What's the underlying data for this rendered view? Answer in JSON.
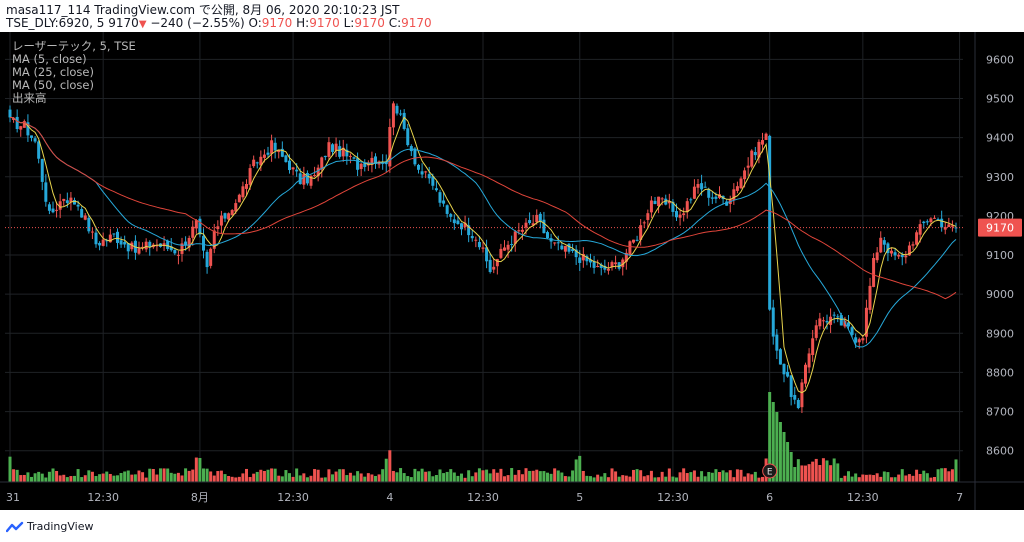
{
  "header": {
    "line1": "masa117_114 TradingView.com で公開, 8月 06, 2020 20:10:23 JST",
    "symbol": "TSE_DLY:6920, 5",
    "last": "9170",
    "change": "−240 (−2.55%)",
    "o_label": "O:",
    "o": "9170",
    "h_label": "H:",
    "h": "9170",
    "l_label": "L:",
    "l": "9170",
    "c_label": "C:",
    "c": "9170"
  },
  "legend": {
    "title": "レーザーテック, 5, TSE",
    "ma5": "MA (5, close)",
    "ma25": "MA (25, close)",
    "ma50": "MA (50, close)",
    "volume": "出来高"
  },
  "footer": {
    "brand": "TradingView"
  },
  "colors": {
    "background": "#000000",
    "grid": "#1f2226",
    "up": "#ef5350",
    "down": "#26a8d9",
    "ma5": "#e8d44d",
    "ma25": "#26a8d9",
    "ma50": "#e0453a",
    "vol_up": "#ef5350",
    "vol_down": "#4caf50",
    "price_label": "#ef5350",
    "axis_text": "#b2b5be"
  },
  "chart_data": {
    "type": "candlestick",
    "interval": "5 min",
    "ylim": [
      8520,
      9670
    ],
    "y_ticks": [
      9600,
      9500,
      9400,
      9300,
      9200,
      9100,
      9000,
      8900,
      8800,
      8700,
      8600
    ],
    "x_tick_labels": [
      {
        "label": "31",
        "index": 0
      },
      {
        "label": "12:30",
        "index": 26
      },
      {
        "label": "8月",
        "index": 53
      },
      {
        "label": "12:30",
        "index": 79
      },
      {
        "label": "4",
        "index": 106
      },
      {
        "label": "12:30",
        "index": 132
      },
      {
        "label": "5",
        "index": 159
      },
      {
        "label": "12:30",
        "index": 185
      },
      {
        "label": "6",
        "index": 212
      },
      {
        "label": "12:30",
        "index": 238
      },
      {
        "label": "7",
        "index": 265
      }
    ],
    "bar_count": 265,
    "current_price": 9170,
    "price_line": 9170,
    "event_marker": {
      "label": "E",
      "index": 212
    },
    "anchors": [
      {
        "i": 0,
        "p": 9440
      },
      {
        "i": 4,
        "p": 9430
      },
      {
        "i": 7,
        "p": 9390
      },
      {
        "i": 11,
        "p": 9200
      },
      {
        "i": 15,
        "p": 9250
      },
      {
        "i": 19,
        "p": 9230
      },
      {
        "i": 24,
        "p": 9130
      },
      {
        "i": 29,
        "p": 9150
      },
      {
        "i": 35,
        "p": 9110
      },
      {
        "i": 40,
        "p": 9130
      },
      {
        "i": 47,
        "p": 9110
      },
      {
        "i": 52,
        "p": 9180
      },
      {
        "i": 55,
        "p": 9060
      },
      {
        "i": 57,
        "p": 9160
      },
      {
        "i": 60,
        "p": 9200
      },
      {
        "i": 64,
        "p": 9250
      },
      {
        "i": 68,
        "p": 9330
      },
      {
        "i": 73,
        "p": 9380
      },
      {
        "i": 78,
        "p": 9330
      },
      {
        "i": 81,
        "p": 9290
      },
      {
        "i": 85,
        "p": 9300
      },
      {
        "i": 89,
        "p": 9380
      },
      {
        "i": 93,
        "p": 9360
      },
      {
        "i": 97,
        "p": 9330
      },
      {
        "i": 101,
        "p": 9350
      },
      {
        "i": 105,
        "p": 9340
      },
      {
        "i": 107,
        "p": 9500
      },
      {
        "i": 110,
        "p": 9420
      },
      {
        "i": 114,
        "p": 9320
      },
      {
        "i": 118,
        "p": 9280
      },
      {
        "i": 122,
        "p": 9200
      },
      {
        "i": 126,
        "p": 9180
      },
      {
        "i": 130,
        "p": 9150
      },
      {
        "i": 134,
        "p": 9060
      },
      {
        "i": 138,
        "p": 9120
      },
      {
        "i": 142,
        "p": 9160
      },
      {
        "i": 147,
        "p": 9190
      },
      {
        "i": 151,
        "p": 9130
      },
      {
        "i": 155,
        "p": 9110
      },
      {
        "i": 160,
        "p": 9090
      },
      {
        "i": 165,
        "p": 9060
      },
      {
        "i": 170,
        "p": 9080
      },
      {
        "i": 175,
        "p": 9150
      },
      {
        "i": 179,
        "p": 9240
      },
      {
        "i": 183,
        "p": 9230
      },
      {
        "i": 187,
        "p": 9200
      },
      {
        "i": 192,
        "p": 9280
      },
      {
        "i": 196,
        "p": 9250
      },
      {
        "i": 200,
        "p": 9240
      },
      {
        "i": 204,
        "p": 9300
      },
      {
        "i": 208,
        "p": 9370
      },
      {
        "i": 211,
        "p": 9410
      },
      {
        "i": 212,
        "p": 8950
      },
      {
        "i": 214,
        "p": 8860
      },
      {
        "i": 216,
        "p": 8800
      },
      {
        "i": 218,
        "p": 8750
      },
      {
        "i": 220,
        "p": 8700
      },
      {
        "i": 222,
        "p": 8820
      },
      {
        "i": 225,
        "p": 8930
      },
      {
        "i": 229,
        "p": 8940
      },
      {
        "i": 233,
        "p": 8920
      },
      {
        "i": 236,
        "p": 8890
      },
      {
        "i": 238,
        "p": 8900
      },
      {
        "i": 241,
        "p": 9080
      },
      {
        "i": 243,
        "p": 9150
      },
      {
        "i": 246,
        "p": 9100
      },
      {
        "i": 249,
        "p": 9090
      },
      {
        "i": 252,
        "p": 9140
      },
      {
        "i": 255,
        "p": 9180
      },
      {
        "i": 257,
        "p": 9200
      },
      {
        "i": 259,
        "p": 9190
      },
      {
        "i": 262,
        "p": 9170
      },
      {
        "i": 264,
        "p": 9170
      }
    ],
    "moving_averages": [
      {
        "name": "MA (5, close)",
        "period": 5
      },
      {
        "name": "MA (25, close)",
        "period": 25
      },
      {
        "name": "MA (50, close)",
        "period": 50
      }
    ]
  }
}
